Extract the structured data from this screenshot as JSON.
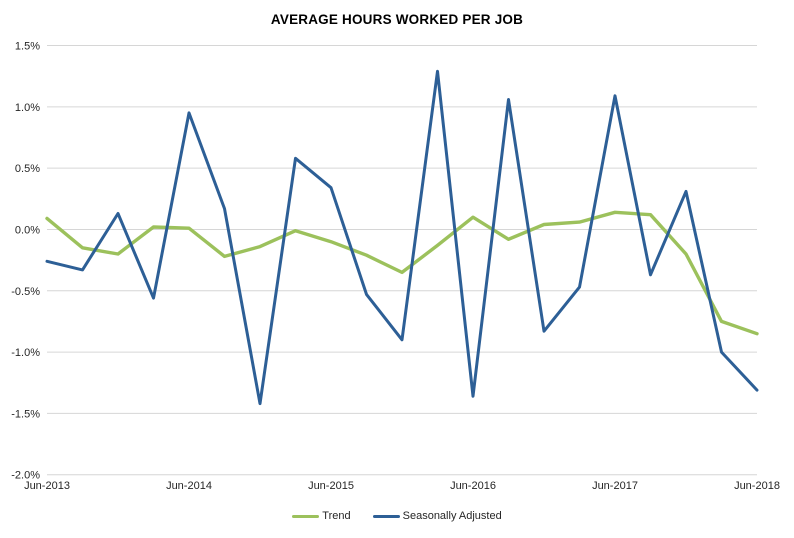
{
  "chart_data": {
    "type": "line",
    "title": "AVERAGE HOURS WORKED PER JOB",
    "x": [
      "Jun-2013",
      "Sep-2013",
      "Dec-2013",
      "Mar-2014",
      "Jun-2014",
      "Sep-2014",
      "Dec-2014",
      "Mar-2015",
      "Jun-2015",
      "Sep-2015",
      "Dec-2015",
      "Mar-2016",
      "Jun-2016",
      "Sep-2016",
      "Dec-2016",
      "Mar-2017",
      "Jun-2017",
      "Sep-2017",
      "Dec-2017",
      "Mar-2018",
      "Jun-2018"
    ],
    "x_tick_labels": [
      "Jun-2013",
      "Jun-2014",
      "Jun-2015",
      "Jun-2016",
      "Jun-2017",
      "Jun-2018"
    ],
    "x_tick_every": 4,
    "y_tick_labels": [
      "1.5%",
      "1.0%",
      "0.5%",
      "0.0%",
      "-0.5%",
      "-1.0%",
      "-1.5%",
      "-2.0%"
    ],
    "ylim": [
      -2.0,
      1.5
    ],
    "y_step": 0.5,
    "y_unit": "%",
    "grid": "horizontal",
    "grid_color": "#D6D6D6",
    "axis_text_color": "#262626",
    "legend_position": "bottom",
    "series": [
      {
        "name": "Trend",
        "color": "#9CC15C",
        "stroke_width": 3.4,
        "values": [
          0.09,
          -0.15,
          -0.2,
          0.02,
          0.01,
          -0.22,
          -0.14,
          -0.01,
          -0.1,
          -0.21,
          -0.35,
          -0.13,
          0.1,
          -0.08,
          0.04,
          0.06,
          0.14,
          0.12,
          -0.2,
          -0.75,
          -0.85
        ]
      },
      {
        "name": "Seasonally Adjusted",
        "color": "#2D5F96",
        "stroke_width": 3.0,
        "values": [
          -0.26,
          -0.33,
          0.13,
          -0.56,
          0.95,
          0.17,
          -1.42,
          0.58,
          0.34,
          -0.53,
          -0.9,
          1.29,
          -1.36,
          1.06,
          -0.83,
          -0.47,
          1.09,
          -0.37,
          0.31,
          -1.0,
          -1.31
        ]
      }
    ]
  }
}
